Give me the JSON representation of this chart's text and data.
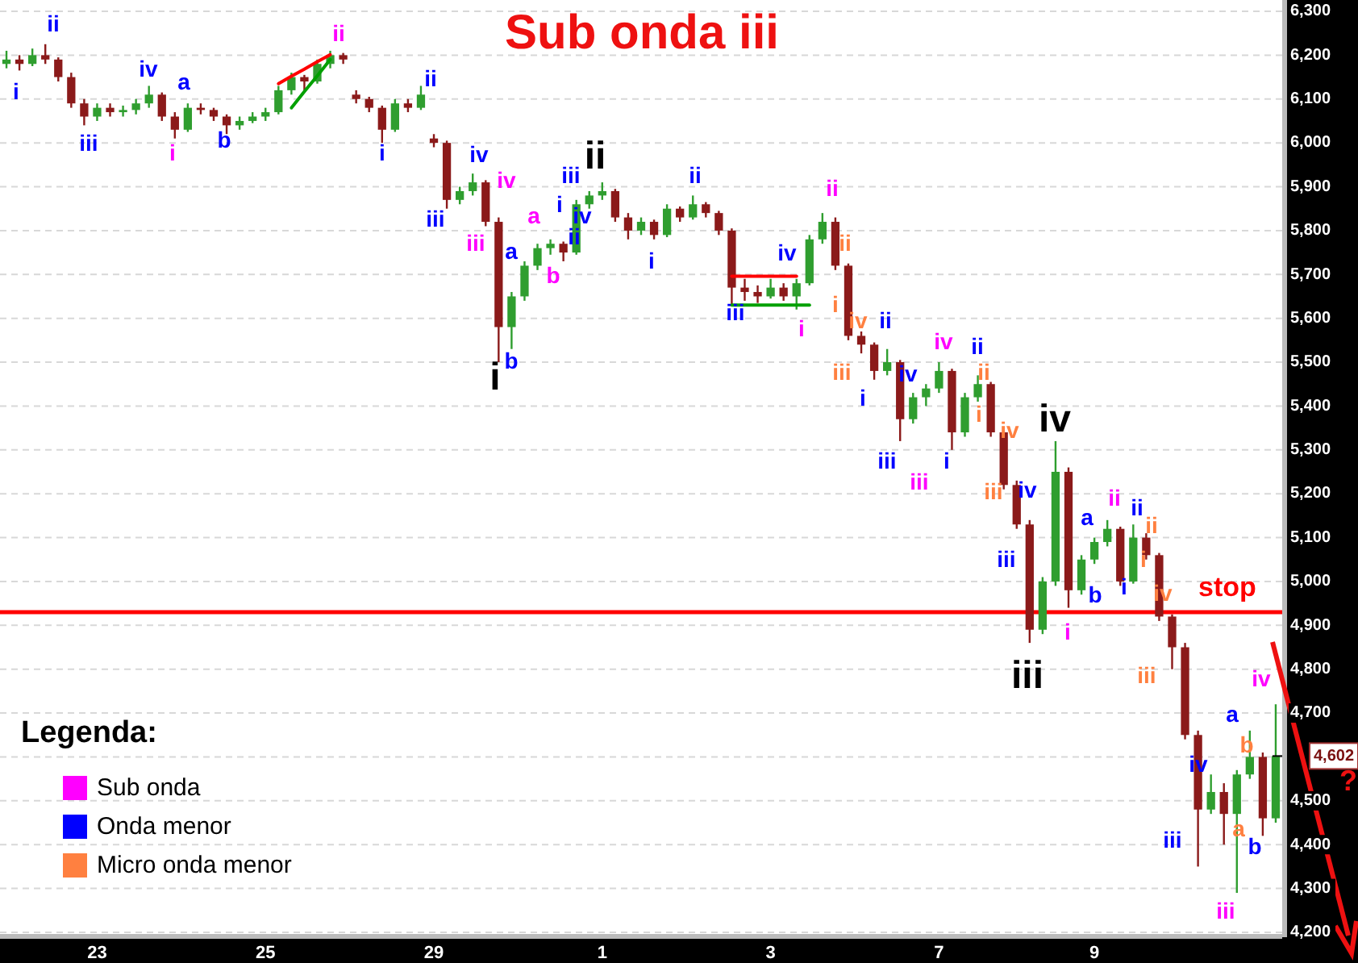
{
  "chart_data": {
    "type": "candlestick",
    "title": "Sub onda iii",
    "grid": "y",
    "ylim": [
      4200,
      6300
    ],
    "yticks": [
      {
        "value": 4200,
        "label": "4,200"
      },
      {
        "value": 4300,
        "label": "4,300"
      },
      {
        "value": 4400,
        "label": "4,400"
      },
      {
        "value": 4500,
        "label": "4,500"
      },
      {
        "value": 4600,
        "label": null
      },
      {
        "value": 4700,
        "label": "4,700"
      },
      {
        "value": 4800,
        "label": "4,800"
      },
      {
        "value": 4900,
        "label": "4,900"
      },
      {
        "value": 5000,
        "label": "5,000"
      },
      {
        "value": 5100,
        "label": "5,100"
      },
      {
        "value": 5200,
        "label": "5,200"
      },
      {
        "value": 5300,
        "label": "5,300"
      },
      {
        "value": 5400,
        "label": "5,400"
      },
      {
        "value": 5500,
        "label": "5,500"
      },
      {
        "value": 5600,
        "label": "5,600"
      },
      {
        "value": 5700,
        "label": "5,700"
      },
      {
        "value": 5800,
        "label": "5,800"
      },
      {
        "value": 5900,
        "label": "5,900"
      },
      {
        "value": 6000,
        "label": "6,000"
      },
      {
        "value": 6100,
        "label": "6,100"
      },
      {
        "value": 6200,
        "label": "6,200"
      },
      {
        "value": 6300,
        "label": "6,300"
      }
    ],
    "categories": [
      null,
      null,
      null,
      null,
      null,
      null,
      null,
      "23",
      null,
      null,
      null,
      null,
      null,
      null,
      null,
      null,
      null,
      null,
      null,
      null,
      "25",
      null,
      null,
      null,
      null,
      null,
      null,
      null,
      null,
      null,
      null,
      null,
      null,
      "29",
      null,
      null,
      null,
      null,
      null,
      null,
      null,
      null,
      null,
      null,
      null,
      null,
      "1",
      null,
      null,
      null,
      null,
      null,
      null,
      null,
      null,
      null,
      null,
      null,
      null,
      "3",
      null,
      null,
      null,
      null,
      null,
      null,
      null,
      null,
      null,
      null,
      null,
      null,
      "7",
      null,
      null,
      null,
      null,
      null,
      null,
      null,
      null,
      null,
      null,
      null,
      "9",
      null,
      null,
      null,
      null,
      null,
      null,
      null,
      null,
      null,
      null,
      null,
      null,
      null,
      null
    ],
    "ohlc": [
      [
        6180,
        6210,
        6170,
        6190
      ],
      [
        6190,
        6200,
        6165,
        6180
      ],
      [
        6180,
        6215,
        6175,
        6200
      ],
      [
        6200,
        6225,
        6180,
        6190
      ],
      [
        6190,
        6195,
        6140,
        6150
      ],
      [
        6150,
        6160,
        6080,
        6090
      ],
      [
        6090,
        6100,
        6040,
        6060
      ],
      [
        6060,
        6090,
        6050,
        6080
      ],
      [
        6080,
        6090,
        6060,
        6070
      ],
      [
        6070,
        6085,
        6060,
        6075
      ],
      [
        6075,
        6100,
        6065,
        6090
      ],
      [
        6090,
        6130,
        6080,
        6110
      ],
      [
        6110,
        6115,
        6050,
        6060
      ],
      [
        6060,
        6070,
        6010,
        6030
      ],
      [
        6030,
        6090,
        6025,
        6080
      ],
      [
        6080,
        6090,
        6065,
        6075
      ],
      [
        6075,
        6080,
        6050,
        6060
      ],
      [
        6060,
        6065,
        6020,
        6040
      ],
      [
        6040,
        6060,
        6030,
        6050
      ],
      [
        6050,
        6070,
        6045,
        6060
      ],
      [
        6060,
        6080,
        6050,
        6070
      ],
      [
        6070,
        6130,
        6065,
        6120
      ],
      [
        6120,
        6160,
        6110,
        6150
      ],
      [
        6150,
        6155,
        6120,
        6140
      ],
      [
        6140,
        6190,
        6135,
        6180
      ],
      [
        6180,
        6210,
        6170,
        6200
      ],
      [
        6200,
        6205,
        6180,
        6190
      ],
      [
        6110,
        6120,
        6090,
        6100
      ],
      [
        6100,
        6105,
        6070,
        6080
      ],
      [
        6080,
        6085,
        6000,
        6030
      ],
      [
        6030,
        6100,
        6025,
        6090
      ],
      [
        6090,
        6100,
        6070,
        6080
      ],
      [
        6080,
        6130,
        6075,
        6110
      ],
      [
        6010,
        6020,
        5990,
        6000
      ],
      [
        6000,
        6005,
        5850,
        5870
      ],
      [
        5870,
        5900,
        5860,
        5890
      ],
      [
        5890,
        5930,
        5880,
        5910
      ],
      [
        5910,
        5915,
        5810,
        5820
      ],
      [
        5820,
        5830,
        5500,
        5580
      ],
      [
        5580,
        5660,
        5530,
        5650
      ],
      [
        5650,
        5730,
        5640,
        5720
      ],
      [
        5720,
        5770,
        5710,
        5760
      ],
      [
        5760,
        5780,
        5745,
        5770
      ],
      [
        5770,
        5775,
        5730,
        5750
      ],
      [
        5750,
        5870,
        5745,
        5860
      ],
      [
        5860,
        5890,
        5850,
        5880
      ],
      [
        5880,
        5910,
        5870,
        5890
      ],
      [
        5890,
        5895,
        5820,
        5830
      ],
      [
        5830,
        5840,
        5780,
        5800
      ],
      [
        5800,
        5830,
        5790,
        5820
      ],
      [
        5820,
        5825,
        5780,
        5790
      ],
      [
        5790,
        5860,
        5785,
        5850
      ],
      [
        5850,
        5855,
        5820,
        5830
      ],
      [
        5830,
        5880,
        5825,
        5860
      ],
      [
        5860,
        5865,
        5830,
        5840
      ],
      [
        5840,
        5845,
        5790,
        5800
      ],
      [
        5800,
        5805,
        5630,
        5670
      ],
      [
        5670,
        5690,
        5640,
        5660
      ],
      [
        5660,
        5675,
        5635,
        5650
      ],
      [
        5650,
        5690,
        5645,
        5670
      ],
      [
        5670,
        5680,
        5640,
        5650
      ],
      [
        5650,
        5690,
        5620,
        5680
      ],
      [
        5680,
        5790,
        5675,
        5780
      ],
      [
        5780,
        5840,
        5770,
        5820
      ],
      [
        5820,
        5830,
        5710,
        5720
      ],
      [
        5720,
        5725,
        5550,
        5560
      ],
      [
        5560,
        5570,
        5520,
        5540
      ],
      [
        5540,
        5545,
        5460,
        5480
      ],
      [
        5480,
        5530,
        5470,
        5500
      ],
      [
        5500,
        5505,
        5320,
        5370
      ],
      [
        5370,
        5430,
        5360,
        5420
      ],
      [
        5420,
        5450,
        5400,
        5440
      ],
      [
        5440,
        5500,
        5430,
        5480
      ],
      [
        5480,
        5485,
        5300,
        5340
      ],
      [
        5340,
        5430,
        5330,
        5420
      ],
      [
        5420,
        5470,
        5410,
        5450
      ],
      [
        5450,
        5455,
        5330,
        5340
      ],
      [
        5340,
        5345,
        5210,
        5220
      ],
      [
        5220,
        5230,
        5120,
        5130
      ],
      [
        5130,
        5140,
        4860,
        4890
      ],
      [
        4890,
        5010,
        4880,
        5000
      ],
      [
        5000,
        5320,
        4990,
        5250
      ],
      [
        5250,
        5260,
        4940,
        4980
      ],
      [
        4980,
        5060,
        4970,
        5050
      ],
      [
        5050,
        5100,
        5040,
        5090
      ],
      [
        5090,
        5140,
        5080,
        5120
      ],
      [
        5120,
        5125,
        4990,
        5000
      ],
      [
        5000,
        5130,
        4995,
        5100
      ],
      [
        5100,
        5110,
        5050,
        5060
      ],
      [
        5060,
        5065,
        4910,
        4920
      ],
      [
        4920,
        4925,
        4800,
        4850
      ],
      [
        4850,
        4860,
        4640,
        4650
      ],
      [
        4650,
        4660,
        4350,
        4480
      ],
      [
        4480,
        4560,
        4470,
        4520
      ],
      [
        4520,
        4540,
        4400,
        4470
      ],
      [
        4470,
        4570,
        4290,
        4560
      ],
      [
        4560,
        4660,
        4550,
        4600
      ],
      [
        4600,
        4610,
        4420,
        4460
      ],
      [
        4460,
        4720,
        4450,
        4602
      ]
    ],
    "series": [
      {
        "type": "line",
        "color": "#ff0000",
        "values": [
          null,
          null,
          null,
          null,
          null,
          null,
          null,
          null,
          null,
          null,
          null,
          null,
          null,
          null,
          null,
          null,
          null,
          null,
          null,
          null,
          null,
          6135,
          6152,
          6168,
          6185,
          6201,
          null,
          null,
          null,
          null,
          null,
          null,
          null,
          null,
          null,
          null,
          null,
          null,
          null,
          null,
          null,
          null,
          null,
          null,
          null,
          null,
          null,
          null,
          null,
          null,
          null,
          null,
          null,
          null,
          null,
          null,
          null,
          null,
          null,
          null,
          null,
          null,
          null,
          null,
          null,
          null,
          null,
          null,
          null,
          null,
          null,
          null,
          null,
          null,
          null,
          null,
          null,
          null,
          null,
          null,
          null,
          null,
          null,
          null,
          null,
          null,
          null,
          null,
          null,
          null,
          null,
          null,
          null,
          null,
          null,
          null,
          null,
          null,
          null
        ]
      },
      {
        "type": "line",
        "color": "#00a000",
        "values": [
          null,
          null,
          null,
          null,
          null,
          null,
          null,
          null,
          null,
          null,
          null,
          null,
          null,
          null,
          null,
          null,
          null,
          null,
          null,
          null,
          null,
          null,
          6080,
          6117,
          6153,
          6190,
          null,
          null,
          null,
          null,
          null,
          null,
          null,
          null,
          null,
          null,
          null,
          null,
          null,
          null,
          null,
          null,
          null,
          null,
          null,
          null,
          null,
          null,
          null,
          null,
          null,
          null,
          null,
          null,
          null,
          null,
          null,
          null,
          null,
          null,
          null,
          null,
          null,
          null,
          null,
          null,
          null,
          null,
          null,
          null,
          null,
          null,
          null,
          null,
          null,
          null,
          null,
          null,
          null,
          null,
          null,
          null,
          null,
          null,
          null,
          null,
          null,
          null,
          null,
          null,
          null,
          null,
          null,
          null,
          null,
          null,
          null,
          null,
          null
        ]
      },
      {
        "type": "line",
        "color": "#ff0000",
        "values": [
          null,
          null,
          null,
          null,
          null,
          null,
          null,
          null,
          null,
          null,
          null,
          null,
          null,
          null,
          null,
          null,
          null,
          null,
          null,
          null,
          null,
          null,
          null,
          null,
          null,
          null,
          null,
          null,
          null,
          null,
          null,
          null,
          null,
          null,
          null,
          null,
          null,
          null,
          null,
          null,
          null,
          null,
          null,
          null,
          null,
          null,
          null,
          null,
          null,
          null,
          null,
          null,
          null,
          null,
          null,
          null,
          5696,
          5696,
          5696,
          5696,
          5696,
          5696,
          null,
          null,
          null,
          null,
          null,
          null,
          null,
          null,
          null,
          null,
          null,
          null,
          null,
          null,
          null,
          null,
          null,
          null,
          null,
          null,
          null,
          null,
          null,
          null,
          null,
          null,
          null,
          null,
          null,
          null,
          null,
          null,
          null,
          null,
          null,
          null,
          null
        ]
      },
      {
        "type": "line",
        "color": "#00a000",
        "values": [
          null,
          null,
          null,
          null,
          null,
          null,
          null,
          null,
          null,
          null,
          null,
          null,
          null,
          null,
          null,
          null,
          null,
          null,
          null,
          null,
          null,
          null,
          null,
          null,
          null,
          null,
          null,
          null,
          null,
          null,
          null,
          null,
          null,
          null,
          null,
          null,
          null,
          null,
          null,
          null,
          null,
          null,
          null,
          null,
          null,
          null,
          null,
          null,
          null,
          null,
          null,
          null,
          null,
          null,
          null,
          null,
          5630,
          5630,
          5630,
          5630,
          5630,
          5630,
          5630,
          null,
          null,
          null,
          null,
          null,
          null,
          null,
          null,
          null,
          null,
          null,
          null,
          null,
          null,
          null,
          null,
          null,
          null,
          null,
          null,
          null,
          null,
          null,
          null,
          null,
          null,
          null,
          null,
          null,
          null,
          null,
          null,
          null,
          null,
          null,
          null
        ]
      }
    ],
    "ref_lines": [
      {
        "axis": "y",
        "value": 4930,
        "label": "stop",
        "color": "#ff0000"
      }
    ],
    "annotations": [
      "4,602",
      "?",
      "i",
      "ii",
      "iii",
      "iv",
      "a",
      "b",
      "i",
      "ii",
      "iv",
      "iii",
      "ii",
      "i",
      "iii",
      "iv",
      "i",
      "ii",
      "iii",
      "iv",
      "a",
      "b",
      "i",
      "ii",
      "iii",
      "iv",
      "a",
      "b",
      "iii",
      "i",
      "iv",
      "ii",
      "i",
      "ii",
      "iii",
      "iv",
      "ii",
      "i",
      "iv",
      "iii",
      "i",
      "ii",
      "iv",
      "iii",
      "a",
      "b",
      "ii",
      "i",
      "iv",
      "iii",
      "a",
      "b",
      "ii",
      "i",
      "iv",
      "iii",
      "ii",
      "i",
      "iv",
      "iii",
      "ii",
      "i",
      "iv",
      "iii",
      "b",
      "a",
      "i",
      "ii",
      "iv",
      "iii",
      "Legenda:",
      "Sub onda",
      "Onda menor",
      "Micro onda menor"
    ]
  }
}
